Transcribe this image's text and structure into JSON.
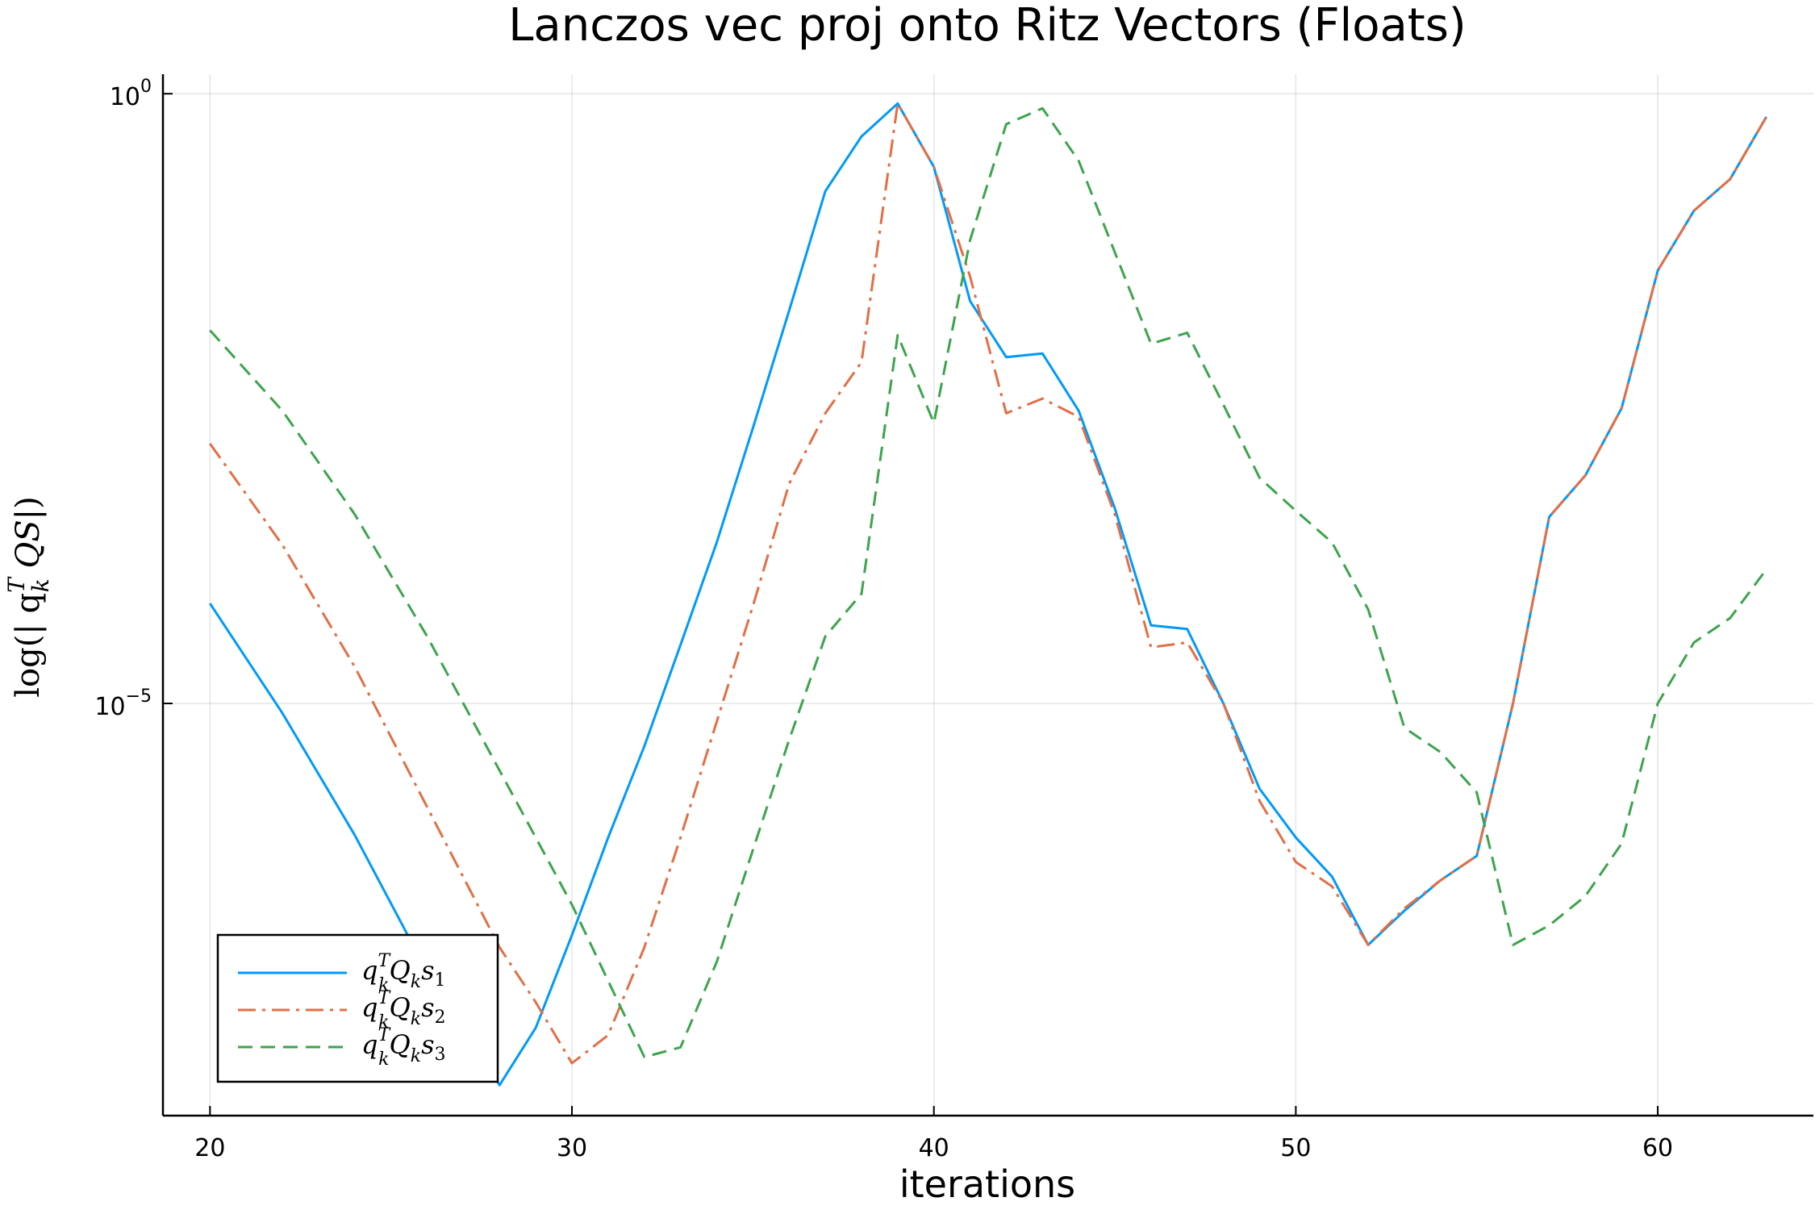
{
  "chart_data": {
    "type": "line",
    "title": "Lanczos vec proj onto Ritz Vectors (Floats)",
    "xlabel": "iterations",
    "ylabel": "log(| q_k^T QS|)",
    "yscale": "log10",
    "xlim": [
      18.7,
      64.3
    ],
    "ylim_log10": [
      -8.38,
      0.16
    ],
    "xticks": [
      20,
      30,
      40,
      50,
      60
    ],
    "xtick_labels": [
      "20",
      "30",
      "40",
      "50",
      "60"
    ],
    "yticks_log10": [
      0,
      -5
    ],
    "ytick_labels": [
      {
        "base": "10",
        "exp": "0"
      },
      {
        "base": "10",
        "exp": "−5"
      }
    ],
    "grid": true,
    "legend_position": "bottom-left",
    "series": [
      {
        "name": "q_k^T Q_k s_1",
        "legend_label": {
          "main": "q",
          "sup": "T",
          "sub": "k",
          "rest": "Q",
          "rest_sub": "k",
          "s": "s",
          "s_sub": "1"
        },
        "color": "#009af9",
        "dash": "solid",
        "x": [
          20,
          22,
          24,
          26,
          28,
          29,
          30,
          31,
          32,
          33,
          34,
          35,
          36,
          37,
          38,
          39,
          40,
          41,
          42,
          43,
          44,
          45,
          46,
          47,
          48,
          49,
          50,
          51,
          52,
          53,
          54,
          55,
          56,
          57,
          58,
          59,
          60,
          61,
          62,
          63
        ],
        "log10y": [
          -4.18,
          -5.08,
          -6.08,
          -7.2,
          -8.13,
          -7.66,
          -6.9,
          -6.1,
          -5.35,
          -4.52,
          -3.68,
          -2.74,
          -1.78,
          -0.8,
          -0.35,
          -0.08,
          -0.6,
          -1.7,
          -2.16,
          -2.13,
          -2.6,
          -3.4,
          -4.36,
          -4.39,
          -5.0,
          -5.7,
          -6.1,
          -6.42,
          -6.98,
          -6.7,
          -6.45,
          -6.25,
          -5.0,
          -3.47,
          -3.13,
          -2.58,
          -1.45,
          -0.96,
          -0.7,
          -0.19
        ]
      },
      {
        "name": "q_k^T Q_k s_2",
        "legend_label": {
          "main": "q",
          "sup": "T",
          "sub": "k",
          "rest": "Q",
          "rest_sub": "k",
          "s": "s",
          "s_sub": "2"
        },
        "color": "#e26f46",
        "dash": "dashdot",
        "x": [
          20,
          22,
          24,
          26,
          28,
          29,
          30,
          31,
          32,
          33,
          34,
          35,
          36,
          37,
          38,
          39,
          40,
          41,
          42,
          43,
          44,
          45,
          46,
          47,
          48,
          49,
          50,
          51,
          52,
          53,
          54,
          55,
          56,
          57,
          58,
          59,
          60,
          61,
          62,
          63
        ],
        "log10y": [
          -2.87,
          -3.7,
          -4.7,
          -5.85,
          -7.0,
          -7.45,
          -7.95,
          -7.72,
          -7.0,
          -6.1,
          -5.15,
          -4.2,
          -3.2,
          -2.62,
          -2.2,
          -0.08,
          -0.6,
          -1.5,
          -2.62,
          -2.5,
          -2.65,
          -3.45,
          -4.54,
          -4.5,
          -5.0,
          -5.8,
          -6.3,
          -6.5,
          -6.98,
          -6.68,
          -6.45,
          -6.25,
          -5.0,
          -3.47,
          -3.13,
          -2.58,
          -1.45,
          -0.96,
          -0.7,
          -0.19
        ]
      },
      {
        "name": "q_k^T Q_k s_3",
        "legend_label": {
          "main": "q",
          "sup": "T",
          "sub": "k",
          "rest": "Q",
          "rest_sub": "k",
          "s": "s",
          "s_sub": "3"
        },
        "color": "#3da44d",
        "dash": "dashed",
        "x": [
          20,
          22,
          24,
          26,
          28,
          30,
          32,
          33,
          34,
          35,
          36,
          37,
          38,
          39,
          40,
          41,
          42,
          43,
          44,
          45,
          46,
          47,
          48,
          49,
          50,
          51,
          52,
          53,
          54,
          55,
          56,
          57,
          58,
          59,
          60,
          61,
          62,
          63
        ],
        "log10y": [
          -1.94,
          -2.6,
          -3.45,
          -4.45,
          -5.55,
          -6.65,
          -7.9,
          -7.82,
          -7.12,
          -6.2,
          -5.3,
          -4.45,
          -4.1,
          -1.98,
          -2.7,
          -1.2,
          -0.25,
          -0.12,
          -0.55,
          -1.3,
          -2.05,
          -1.96,
          -2.55,
          -3.15,
          -3.42,
          -3.68,
          -4.23,
          -5.2,
          -5.4,
          -5.73,
          -6.98,
          -6.82,
          -6.58,
          -6.15,
          -5.0,
          -4.5,
          -4.3,
          -3.9
        ]
      }
    ]
  }
}
